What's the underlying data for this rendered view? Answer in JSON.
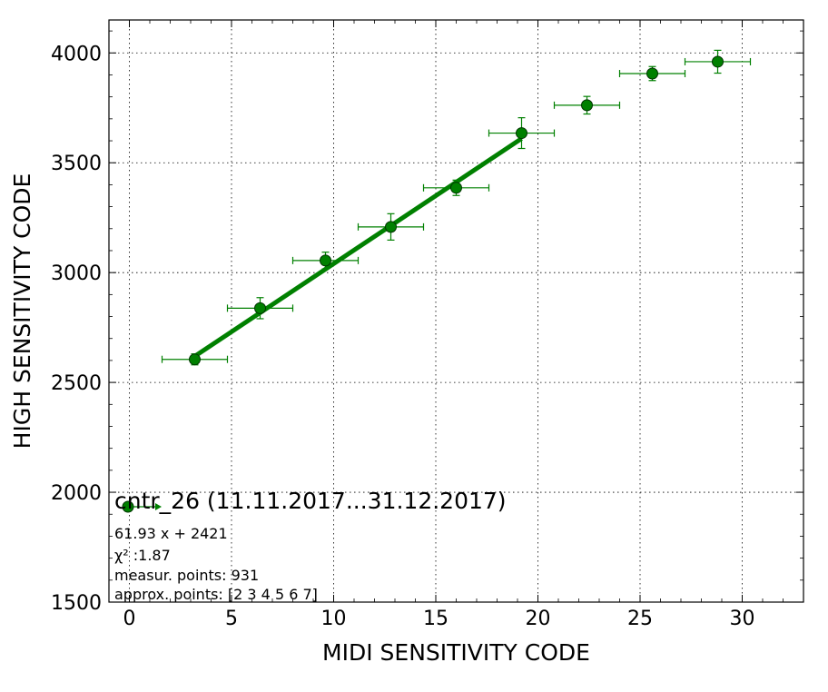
{
  "chart_data": {
    "type": "scatter",
    "xlabel": "MIDI SENSITIVITY CODE",
    "ylabel": "HIGH SENSITIVITY CODE",
    "xlim": [
      -1,
      33
    ],
    "ylim": [
      1500,
      4150
    ],
    "xticks": [
      0,
      5,
      10,
      15,
      20,
      25,
      30
    ],
    "yticks": [
      1500,
      2000,
      2500,
      3000,
      3500,
      4000
    ],
    "grid": true,
    "grid_style": "dotted",
    "legend_placement": "lower-left",
    "colors": {
      "series": "#008000",
      "edge": "#003300",
      "grid": "#000000"
    },
    "series": [
      {
        "name": "cntr_26 (11.11.2017...31.12.2017)",
        "marker": "circle",
        "points": [
          {
            "x": 3.2,
            "y": 2605,
            "xerr": 1.6,
            "yerr": 25
          },
          {
            "x": 6.4,
            "y": 2838,
            "xerr": 1.6,
            "yerr": 48
          },
          {
            "x": 9.6,
            "y": 3055,
            "xerr": 1.6,
            "yerr": 38
          },
          {
            "x": 12.8,
            "y": 3208,
            "xerr": 1.6,
            "yerr": 60
          },
          {
            "x": 16.0,
            "y": 3386,
            "xerr": 1.6,
            "yerr": 35
          },
          {
            "x": 19.2,
            "y": 3635,
            "xerr": 1.6,
            "yerr": 70
          },
          {
            "x": 22.4,
            "y": 3762,
            "xerr": 1.6,
            "yerr": 40
          },
          {
            "x": 25.6,
            "y": 3906,
            "xerr": 1.6,
            "yerr": 32
          },
          {
            "x": 28.8,
            "y": 3960,
            "xerr": 1.6,
            "yerr": 52
          }
        ]
      }
    ],
    "fit": {
      "slope": 61.93,
      "intercept": 2421,
      "x_range": [
        3.2,
        19.2
      ]
    },
    "legend": {
      "title": "cntr_26 (11.11.2017...31.12.2017)",
      "lines": [
        "61.93 x + 2421",
        "χ² :1.87",
        "measur. points: 931",
        "approx. points: [2 3 4 5 6 7]"
      ]
    }
  }
}
